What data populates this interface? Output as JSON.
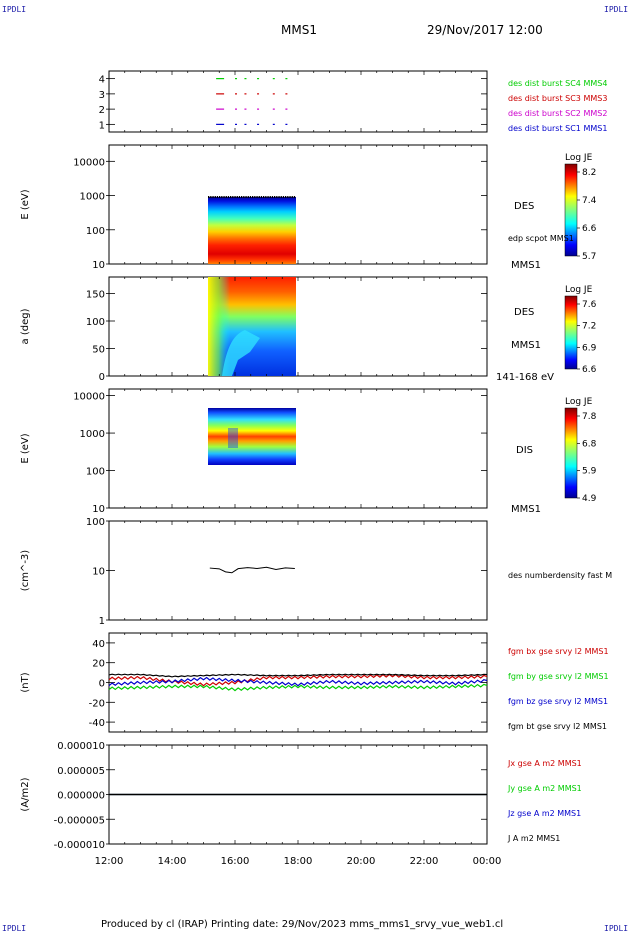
{
  "corners": {
    "top_left": "IPDLI",
    "top_right": "IPDLI",
    "bottom_left": "IPDLI",
    "bottom_right": "IPDLI"
  },
  "header": {
    "spacecraft": "MMS1",
    "datetime": "29/Nov/2017 12:00"
  },
  "footer": {
    "text": "Produced by cl (IRAP)   Printing date: 29/Nov/2023   mms_mms1_srvy_vue_web1.cl"
  },
  "colors": {
    "blue": "#0000cc",
    "magenta": "#cc00cc",
    "red": "#cc0000",
    "green": "#00cc00",
    "black": "#000000"
  },
  "chart_data": [
    {
      "type": "line",
      "panel": "burst-availability",
      "x_ticks": [
        "12:00",
        "14:00",
        "16:00",
        "18:00",
        "20:00",
        "22:00",
        "00:00"
      ],
      "ylim": [
        0.5,
        4.5
      ],
      "y_ticks": [
        "1",
        "2",
        "3",
        "4"
      ],
      "series": [
        {
          "name": "des dist burst SC1 MMS1",
          "level": 1,
          "color": "#0000cc",
          "x_hours": [
            15.4,
            16.0,
            16.3,
            16.7,
            17.2,
            17.6
          ]
        },
        {
          "name": "des dist burst SC2 MMS2",
          "level": 2,
          "color": "#cc00cc",
          "x_hours": [
            15.4,
            16.0,
            16.3,
            16.7,
            17.2,
            17.6
          ]
        },
        {
          "name": "des dist burst SC3 MMS3",
          "level": 3,
          "color": "#cc0000",
          "x_hours": [
            15.4,
            16.0,
            16.3,
            16.7,
            17.2,
            17.6
          ]
        },
        {
          "name": "des dist burst SC4 MMS4",
          "level": 4,
          "color": "#00cc00",
          "x_hours": [
            15.4,
            16.0,
            16.3,
            16.7,
            17.2,
            17.6
          ]
        }
      ]
    },
    {
      "type": "heatmap",
      "panel": "des-energy-spectrogram",
      "ylabel": "E (eV)",
      "yscale": "log",
      "ylim": [
        10,
        30000
      ],
      "y_ticks": [
        "10",
        "100",
        "1000",
        "10000"
      ],
      "label": "DES",
      "sub_label": "edp scpot MMS1",
      "spacecraft_label": "MMS1",
      "time_range_hours": [
        15.1,
        18.0
      ],
      "energy_range": [
        13,
        1000
      ],
      "colorbar": {
        "title": "Log JE",
        "ticks": [
          "8.2",
          "7.4",
          "6.6",
          "5.7"
        ],
        "range": [
          5.7,
          8.3
        ]
      }
    },
    {
      "type": "heatmap",
      "panel": "des-pitch-angle",
      "ylabel": "a (deg)",
      "ylim": [
        0,
        180
      ],
      "y_ticks": [
        "0",
        "50",
        "100",
        "150"
      ],
      "label": "DES",
      "spacecraft_label": "MMS1",
      "energy_label": "141-168 eV",
      "time_range_hours": [
        15.1,
        18.0
      ],
      "colorbar": {
        "title": "Log JE",
        "ticks": [
          "7.6",
          "7.2",
          "6.9",
          "6.6"
        ],
        "range": [
          6.6,
          7.7
        ]
      }
    },
    {
      "type": "heatmap",
      "panel": "dis-energy-spectrogram",
      "ylabel": "E (eV)",
      "yscale": "log",
      "ylim": [
        10,
        15000
      ],
      "y_ticks": [
        "10",
        "100",
        "1000",
        "10000"
      ],
      "label": "DIS",
      "spacecraft_label": "MMS1",
      "time_range_hours": [
        15.1,
        18.0
      ],
      "energy_range": [
        200,
        10000
      ],
      "colorbar": {
        "title": "Log JE",
        "ticks": [
          "7.8",
          "6.8",
          "5.9",
          "4.9"
        ],
        "range": [
          4.9,
          8.0
        ]
      }
    },
    {
      "type": "line",
      "panel": "density",
      "ylabel": "(cm^-3)",
      "yscale": "log",
      "ylim": [
        1,
        100
      ],
      "y_ticks": [
        "1",
        "10",
        "100"
      ],
      "series": [
        {
          "name": "des numberdensity fast M",
          "color": "#000000",
          "x_hours": [
            15.2,
            15.5,
            15.7,
            15.9,
            16.1,
            16.4,
            16.7,
            17.0,
            17.3,
            17.6,
            17.9
          ],
          "y": [
            11.2,
            10.8,
            9.4,
            9.0,
            10.9,
            11.4,
            11.0,
            11.6,
            10.5,
            11.3,
            11.0
          ]
        }
      ]
    },
    {
      "type": "line",
      "panel": "magnetic-field",
      "ylabel": "(nT)",
      "ylim": [
        -50,
        50
      ],
      "y_ticks": [
        "40",
        "20",
        "0",
        "-20",
        "-40"
      ],
      "series": [
        {
          "name": "fgm bx gse srvy l2 MMS1",
          "color": "#cc0000",
          "x_hours": [
            12.0,
            13.0,
            14.0,
            15.0,
            16.0,
            17.0,
            18.0,
            19.0,
            20.0,
            21.0,
            22.0,
            23.0,
            24.0
          ],
          "y": [
            4,
            5,
            1,
            -2,
            0,
            5,
            5,
            6,
            6,
            7,
            5,
            5,
            6
          ]
        },
        {
          "name": "fgm by gse srvy l2 MMS1",
          "color": "#00cc00",
          "x_hours": [
            12.0,
            13.0,
            14.0,
            15.0,
            16.0,
            17.0,
            18.0,
            19.0,
            20.0,
            21.0,
            22.0,
            23.0,
            24.0
          ],
          "y": [
            -6,
            -5,
            -4,
            -4,
            -7,
            -5,
            -4,
            -5,
            -5,
            -4,
            -5,
            -4,
            -3
          ]
        },
        {
          "name": "fgm bz gse srvy l2 MMS1",
          "color": "#0000cc",
          "x_hours": [
            12.0,
            13.0,
            14.0,
            15.0,
            16.0,
            17.0,
            18.0,
            19.0,
            20.0,
            21.0,
            22.0,
            23.0,
            24.0
          ],
          "y": [
            -2,
            0,
            1,
            4,
            2,
            0,
            -2,
            1,
            -1,
            0,
            1,
            -1,
            2
          ]
        },
        {
          "name": "fgm bt gse srvy l2 MMS1",
          "color": "#000000",
          "x_hours": [
            12.0,
            13.0,
            14.0,
            15.0,
            16.0,
            17.0,
            18.0,
            19.0,
            20.0,
            21.0,
            22.0,
            23.0,
            24.0
          ],
          "y": [
            8,
            8,
            6,
            7,
            8,
            7,
            7,
            8,
            8,
            8,
            7,
            7,
            8
          ]
        }
      ]
    },
    {
      "type": "line",
      "panel": "current-density",
      "ylabel": "(A/m2)",
      "ylim": [
        -1e-05,
        1e-05
      ],
      "y_ticks": [
        "0.000010",
        "0.000005",
        "0.000000",
        "-0.000005",
        "-0.000010"
      ],
      "x_ticks": [
        "12:00",
        "14:00",
        "16:00",
        "18:00",
        "20:00",
        "22:00",
        "00:00"
      ],
      "series": [
        {
          "name": "Jx gse A m2 MMS1",
          "color": "#cc0000",
          "x_hours": [
            12.0,
            24.0
          ],
          "y": [
            0,
            0
          ]
        },
        {
          "name": "Jy gse A m2 MMS1",
          "color": "#00cc00",
          "x_hours": [
            12.0,
            24.0
          ],
          "y": [
            0,
            0
          ]
        },
        {
          "name": "Jz gse A m2 MMS1",
          "color": "#0000cc",
          "x_hours": [
            12.0,
            24.0
          ],
          "y": [
            0,
            0
          ]
        },
        {
          "name": "J A m2 MMS1",
          "color": "#000000",
          "x_hours": [
            12.0,
            24.0
          ],
          "y": [
            0,
            0
          ]
        }
      ]
    }
  ]
}
